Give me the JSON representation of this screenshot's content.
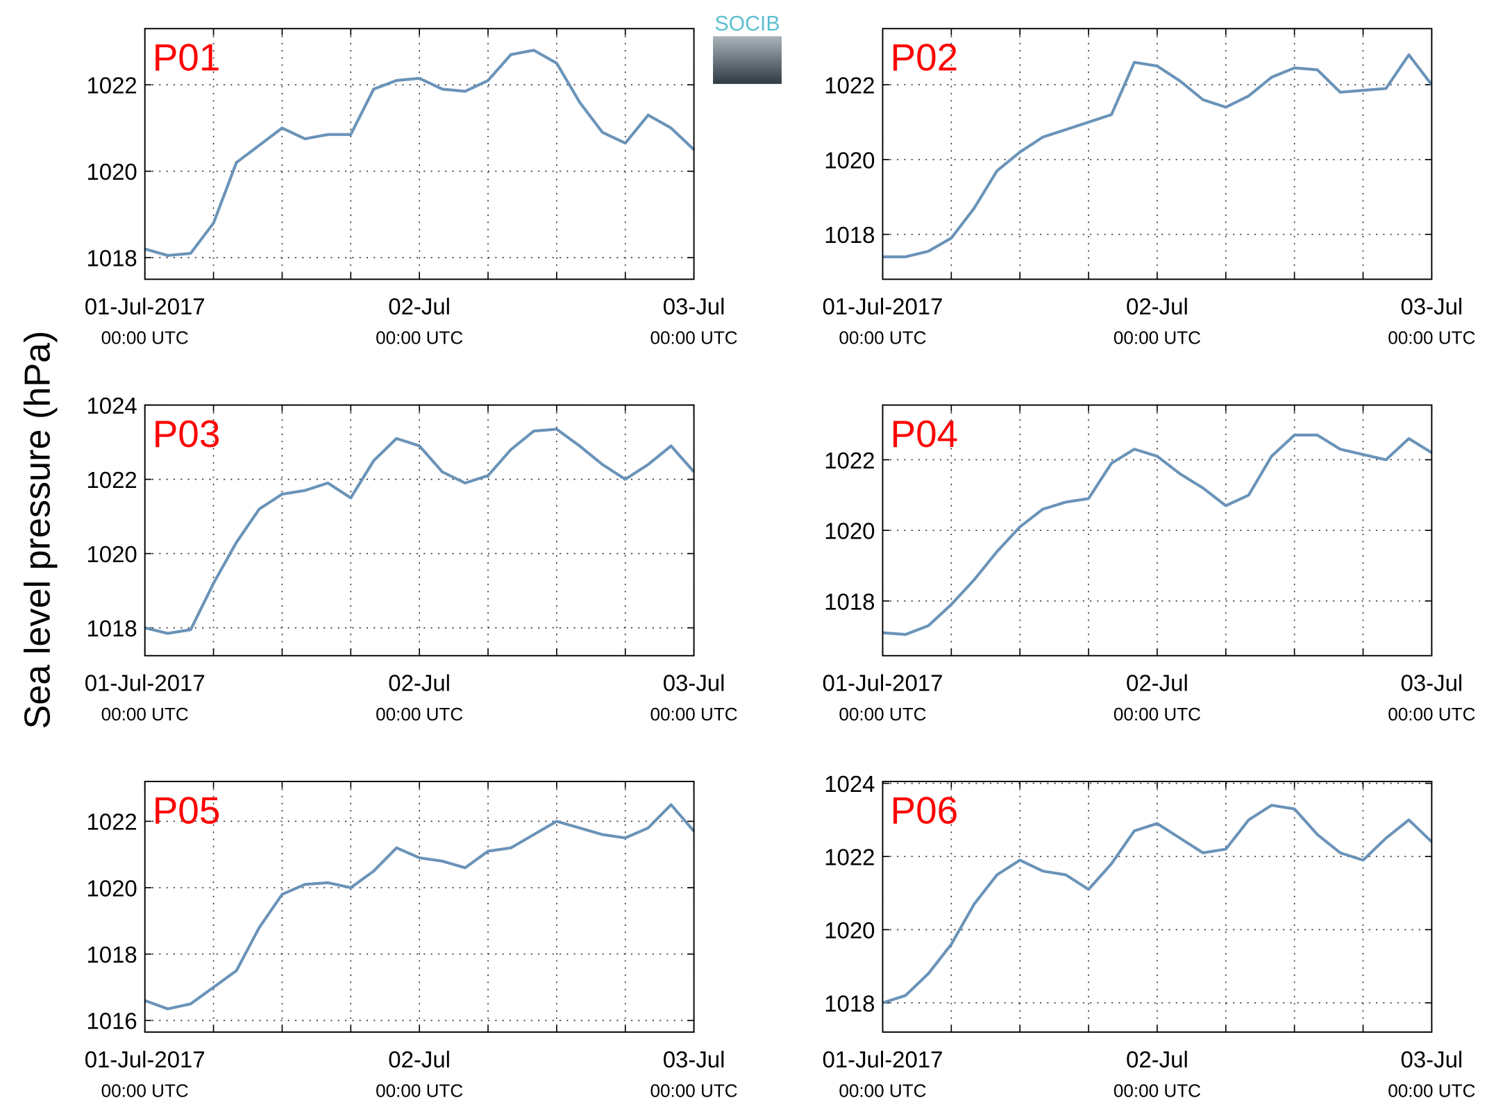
{
  "ylabel": "Sea level pressure (hPa)",
  "logo": "SOCIB",
  "chart_data": [
    {
      "type": "line",
      "title": "P01",
      "color": "#6a93b8",
      "grid": true,
      "x": [
        "2017-07-01 00:00",
        "2017-07-01 02:00",
        "2017-07-01 04:00",
        "2017-07-01 06:00",
        "2017-07-01 08:00",
        "2017-07-01 10:00",
        "2017-07-01 12:00",
        "2017-07-01 14:00",
        "2017-07-01 16:00",
        "2017-07-01 18:00",
        "2017-07-01 20:00",
        "2017-07-01 22:00",
        "2017-07-02 00:00",
        "2017-07-02 02:00",
        "2017-07-02 04:00",
        "2017-07-02 06:00",
        "2017-07-02 08:00",
        "2017-07-02 10:00",
        "2017-07-02 12:00",
        "2017-07-02 14:00",
        "2017-07-02 16:00",
        "2017-07-02 18:00",
        "2017-07-02 20:00",
        "2017-07-02 22:00",
        "2017-07-03 00:00"
      ],
      "values": [
        1018.2,
        1018.05,
        1018.1,
        1018.8,
        1020.2,
        1020.6,
        1021.0,
        1020.75,
        1020.85,
        1020.85,
        1021.9,
        1022.1,
        1022.15,
        1021.9,
        1021.85,
        1022.1,
        1022.7,
        1022.8,
        1022.5,
        1021.6,
        1020.9,
        1020.65,
        1021.3,
        1021.0,
        1020.5
      ],
      "xlim": [
        "2017-07-01 00:00",
        "2017-07-03 00:00"
      ],
      "xticks": [
        {
          "value": "2017-07-01 00:00",
          "label": [
            "01-Jul-2017",
            "00:00 UTC"
          ]
        },
        {
          "value": "2017-07-01 06:00",
          "label": null
        },
        {
          "value": "2017-07-01 12:00",
          "label": null
        },
        {
          "value": "2017-07-01 18:00",
          "label": null
        },
        {
          "value": "2017-07-02 00:00",
          "label": [
            "02-Jul",
            "00:00 UTC"
          ]
        },
        {
          "value": "2017-07-02 06:00",
          "label": null
        },
        {
          "value": "2017-07-02 12:00",
          "label": null
        },
        {
          "value": "2017-07-02 18:00",
          "label": null
        },
        {
          "value": "2017-07-03 00:00",
          "label": [
            "03-Jul",
            "00:00 UTC"
          ]
        }
      ],
      "ylim": [
        1017.5,
        1023.3
      ],
      "yticks": [
        1018,
        1020,
        1022
      ]
    },
    {
      "type": "line",
      "title": "P02",
      "color": "#6a93b8",
      "grid": true,
      "x": [
        "2017-07-01 00:00",
        "2017-07-01 02:00",
        "2017-07-01 04:00",
        "2017-07-01 06:00",
        "2017-07-01 08:00",
        "2017-07-01 10:00",
        "2017-07-01 12:00",
        "2017-07-01 14:00",
        "2017-07-01 16:00",
        "2017-07-01 18:00",
        "2017-07-01 20:00",
        "2017-07-01 22:00",
        "2017-07-02 00:00",
        "2017-07-02 02:00",
        "2017-07-02 04:00",
        "2017-07-02 06:00",
        "2017-07-02 08:00",
        "2017-07-02 10:00",
        "2017-07-02 12:00",
        "2017-07-02 14:00",
        "2017-07-02 16:00",
        "2017-07-02 18:00",
        "2017-07-02 20:00",
        "2017-07-02 22:00",
        "2017-07-03 00:00"
      ],
      "values": [
        1017.4,
        1017.4,
        1017.55,
        1017.9,
        1018.7,
        1019.7,
        1020.2,
        1020.6,
        1020.8,
        1021.0,
        1021.2,
        1022.6,
        1022.5,
        1022.1,
        1021.6,
        1021.4,
        1021.7,
        1022.2,
        1022.45,
        1022.4,
        1021.8,
        1021.85,
        1021.9,
        1022.8,
        1022.0
      ],
      "xlim": [
        "2017-07-01 00:00",
        "2017-07-03 00:00"
      ],
      "xticks": [
        {
          "value": "2017-07-01 00:00",
          "label": [
            "01-Jul-2017",
            "00:00 UTC"
          ]
        },
        {
          "value": "2017-07-01 06:00",
          "label": null
        },
        {
          "value": "2017-07-01 12:00",
          "label": null
        },
        {
          "value": "2017-07-01 18:00",
          "label": null
        },
        {
          "value": "2017-07-02 00:00",
          "label": [
            "02-Jul",
            "00:00 UTC"
          ]
        },
        {
          "value": "2017-07-02 06:00",
          "label": null
        },
        {
          "value": "2017-07-02 12:00",
          "label": null
        },
        {
          "value": "2017-07-02 18:00",
          "label": null
        },
        {
          "value": "2017-07-03 00:00",
          "label": [
            "03-Jul",
            "00:00 UTC"
          ]
        }
      ],
      "ylim": [
        1016.8,
        1023.5
      ],
      "yticks": [
        1018,
        1020,
        1022
      ]
    },
    {
      "type": "line",
      "title": "P03",
      "color": "#6a93b8",
      "grid": true,
      "x": [
        "2017-07-01 00:00",
        "2017-07-01 02:00",
        "2017-07-01 04:00",
        "2017-07-01 06:00",
        "2017-07-01 08:00",
        "2017-07-01 10:00",
        "2017-07-01 12:00",
        "2017-07-01 14:00",
        "2017-07-01 16:00",
        "2017-07-01 18:00",
        "2017-07-01 20:00",
        "2017-07-01 22:00",
        "2017-07-02 00:00",
        "2017-07-02 02:00",
        "2017-07-02 04:00",
        "2017-07-02 06:00",
        "2017-07-02 08:00",
        "2017-07-02 10:00",
        "2017-07-02 12:00",
        "2017-07-02 14:00",
        "2017-07-02 16:00",
        "2017-07-02 18:00",
        "2017-07-02 20:00",
        "2017-07-02 22:00",
        "2017-07-03 00:00"
      ],
      "values": [
        1018.0,
        1017.85,
        1017.95,
        1019.2,
        1020.3,
        1021.2,
        1021.6,
        1021.7,
        1021.9,
        1021.5,
        1022.5,
        1023.1,
        1022.9,
        1022.2,
        1021.9,
        1022.1,
        1022.8,
        1023.3,
        1023.35,
        1022.9,
        1022.4,
        1022.0,
        1022.4,
        1022.9,
        1022.2
      ],
      "xlim": [
        "2017-07-01 00:00",
        "2017-07-03 00:00"
      ],
      "xticks": [
        {
          "value": "2017-07-01 00:00",
          "label": [
            "01-Jul-2017",
            "00:00 UTC"
          ]
        },
        {
          "value": "2017-07-01 06:00",
          "label": null
        },
        {
          "value": "2017-07-01 12:00",
          "label": null
        },
        {
          "value": "2017-07-01 18:00",
          "label": null
        },
        {
          "value": "2017-07-02 00:00",
          "label": [
            "02-Jul",
            "00:00 UTC"
          ]
        },
        {
          "value": "2017-07-02 06:00",
          "label": null
        },
        {
          "value": "2017-07-02 12:00",
          "label": null
        },
        {
          "value": "2017-07-02 18:00",
          "label": null
        },
        {
          "value": "2017-07-03 00:00",
          "label": [
            "03-Jul",
            "00:00 UTC"
          ]
        }
      ],
      "ylim": [
        1017.25,
        1024
      ],
      "yticks": [
        1018,
        1020,
        1022,
        1024
      ]
    },
    {
      "type": "line",
      "title": "P04",
      "color": "#6a93b8",
      "grid": true,
      "x": [
        "2017-07-01 00:00",
        "2017-07-01 02:00",
        "2017-07-01 04:00",
        "2017-07-01 06:00",
        "2017-07-01 08:00",
        "2017-07-01 10:00",
        "2017-07-01 12:00",
        "2017-07-01 14:00",
        "2017-07-01 16:00",
        "2017-07-01 18:00",
        "2017-07-01 20:00",
        "2017-07-01 22:00",
        "2017-07-02 00:00",
        "2017-07-02 02:00",
        "2017-07-02 04:00",
        "2017-07-02 06:00",
        "2017-07-02 08:00",
        "2017-07-02 10:00",
        "2017-07-02 12:00",
        "2017-07-02 14:00",
        "2017-07-02 16:00",
        "2017-07-02 18:00",
        "2017-07-02 20:00",
        "2017-07-02 22:00",
        "2017-07-03 00:00"
      ],
      "values": [
        1017.1,
        1017.05,
        1017.3,
        1017.9,
        1018.6,
        1019.4,
        1020.1,
        1020.6,
        1020.8,
        1020.9,
        1021.9,
        1022.3,
        1022.1,
        1021.6,
        1021.2,
        1020.7,
        1021.0,
        1022.1,
        1022.7,
        1022.7,
        1022.3,
        1022.15,
        1022.0,
        1022.6,
        1022.2
      ],
      "xlim": [
        "2017-07-01 00:00",
        "2017-07-03 00:00"
      ],
      "xticks": [
        {
          "value": "2017-07-01 00:00",
          "label": [
            "01-Jul-2017",
            "00:00 UTC"
          ]
        },
        {
          "value": "2017-07-01 06:00",
          "label": null
        },
        {
          "value": "2017-07-01 12:00",
          "label": null
        },
        {
          "value": "2017-07-01 18:00",
          "label": null
        },
        {
          "value": "2017-07-02 00:00",
          "label": [
            "02-Jul",
            "00:00 UTC"
          ]
        },
        {
          "value": "2017-07-02 06:00",
          "label": null
        },
        {
          "value": "2017-07-02 12:00",
          "label": null
        },
        {
          "value": "2017-07-02 18:00",
          "label": null
        },
        {
          "value": "2017-07-03 00:00",
          "label": [
            "03-Jul",
            "00:00 UTC"
          ]
        }
      ],
      "ylim": [
        1016.45,
        1023.55
      ],
      "yticks": [
        1018,
        1020,
        1022
      ]
    },
    {
      "type": "line",
      "title": "P05",
      "color": "#6a93b8",
      "grid": true,
      "x": [
        "2017-07-01 00:00",
        "2017-07-01 02:00",
        "2017-07-01 04:00",
        "2017-07-01 06:00",
        "2017-07-01 08:00",
        "2017-07-01 10:00",
        "2017-07-01 12:00",
        "2017-07-01 14:00",
        "2017-07-01 16:00",
        "2017-07-01 18:00",
        "2017-07-01 20:00",
        "2017-07-01 22:00",
        "2017-07-02 00:00",
        "2017-07-02 02:00",
        "2017-07-02 04:00",
        "2017-07-02 06:00",
        "2017-07-02 08:00",
        "2017-07-02 10:00",
        "2017-07-02 12:00",
        "2017-07-02 14:00",
        "2017-07-02 16:00",
        "2017-07-02 18:00",
        "2017-07-02 20:00",
        "2017-07-02 22:00",
        "2017-07-03 00:00"
      ],
      "values": [
        1016.6,
        1016.35,
        1016.5,
        1017.0,
        1017.5,
        1018.8,
        1019.8,
        1020.1,
        1020.15,
        1020.0,
        1020.5,
        1021.2,
        1020.9,
        1020.8,
        1020.6,
        1021.1,
        1021.2,
        1021.6,
        1022.0,
        1021.8,
        1021.6,
        1021.5,
        1021.8,
        1022.5,
        1021.7
      ],
      "xlim": [
        "2017-07-01 00:00",
        "2017-07-03 00:00"
      ],
      "xticks": [
        {
          "value": "2017-07-01 00:00",
          "label": [
            "01-Jul-2017",
            "00:00 UTC"
          ]
        },
        {
          "value": "2017-07-01 06:00",
          "label": null
        },
        {
          "value": "2017-07-01 12:00",
          "label": null
        },
        {
          "value": "2017-07-01 18:00",
          "label": null
        },
        {
          "value": "2017-07-02 00:00",
          "label": [
            "02-Jul",
            "00:00 UTC"
          ]
        },
        {
          "value": "2017-07-02 06:00",
          "label": null
        },
        {
          "value": "2017-07-02 12:00",
          "label": null
        },
        {
          "value": "2017-07-02 18:00",
          "label": null
        },
        {
          "value": "2017-07-03 00:00",
          "label": [
            "03-Jul",
            "00:00 UTC"
          ]
        }
      ],
      "ylim": [
        1015.65,
        1023.2
      ],
      "yticks": [
        1016,
        1018,
        1020,
        1022
      ]
    },
    {
      "type": "line",
      "title": "P06",
      "color": "#6a93b8",
      "grid": true,
      "x": [
        "2017-07-01 00:00",
        "2017-07-01 02:00",
        "2017-07-01 04:00",
        "2017-07-01 06:00",
        "2017-07-01 08:00",
        "2017-07-01 10:00",
        "2017-07-01 12:00",
        "2017-07-01 14:00",
        "2017-07-01 16:00",
        "2017-07-01 18:00",
        "2017-07-01 20:00",
        "2017-07-01 22:00",
        "2017-07-02 00:00",
        "2017-07-02 02:00",
        "2017-07-02 04:00",
        "2017-07-02 06:00",
        "2017-07-02 08:00",
        "2017-07-02 10:00",
        "2017-07-02 12:00",
        "2017-07-02 14:00",
        "2017-07-02 16:00",
        "2017-07-02 18:00",
        "2017-07-02 20:00",
        "2017-07-02 22:00",
        "2017-07-03 00:00"
      ],
      "values": [
        1018.0,
        1018.2,
        1018.8,
        1019.6,
        1020.7,
        1021.5,
        1021.9,
        1021.6,
        1021.5,
        1021.1,
        1021.8,
        1022.7,
        1022.9,
        1022.5,
        1022.1,
        1022.2,
        1023.0,
        1023.4,
        1023.3,
        1022.6,
        1022.1,
        1021.9,
        1022.5,
        1023.0,
        1022.4
      ],
      "xlim": [
        "2017-07-01 00:00",
        "2017-07-03 00:00"
      ],
      "xticks": [
        {
          "value": "2017-07-01 00:00",
          "label": [
            "01-Jul-2017",
            "00:00 UTC"
          ]
        },
        {
          "value": "2017-07-01 06:00",
          "label": null
        },
        {
          "value": "2017-07-01 12:00",
          "label": null
        },
        {
          "value": "2017-07-01 18:00",
          "label": null
        },
        {
          "value": "2017-07-02 00:00",
          "label": [
            "02-Jul",
            "00:00 UTC"
          ]
        },
        {
          "value": "2017-07-02 06:00",
          "label": null
        },
        {
          "value": "2017-07-02 12:00",
          "label": null
        },
        {
          "value": "2017-07-02 18:00",
          "label": null
        },
        {
          "value": "2017-07-03 00:00",
          "label": [
            "03-Jul",
            "00:00 UTC"
          ]
        }
      ],
      "ylim": [
        1017.2,
        1024.05
      ],
      "yticks": [
        1018,
        1020,
        1022,
        1024
      ]
    }
  ]
}
